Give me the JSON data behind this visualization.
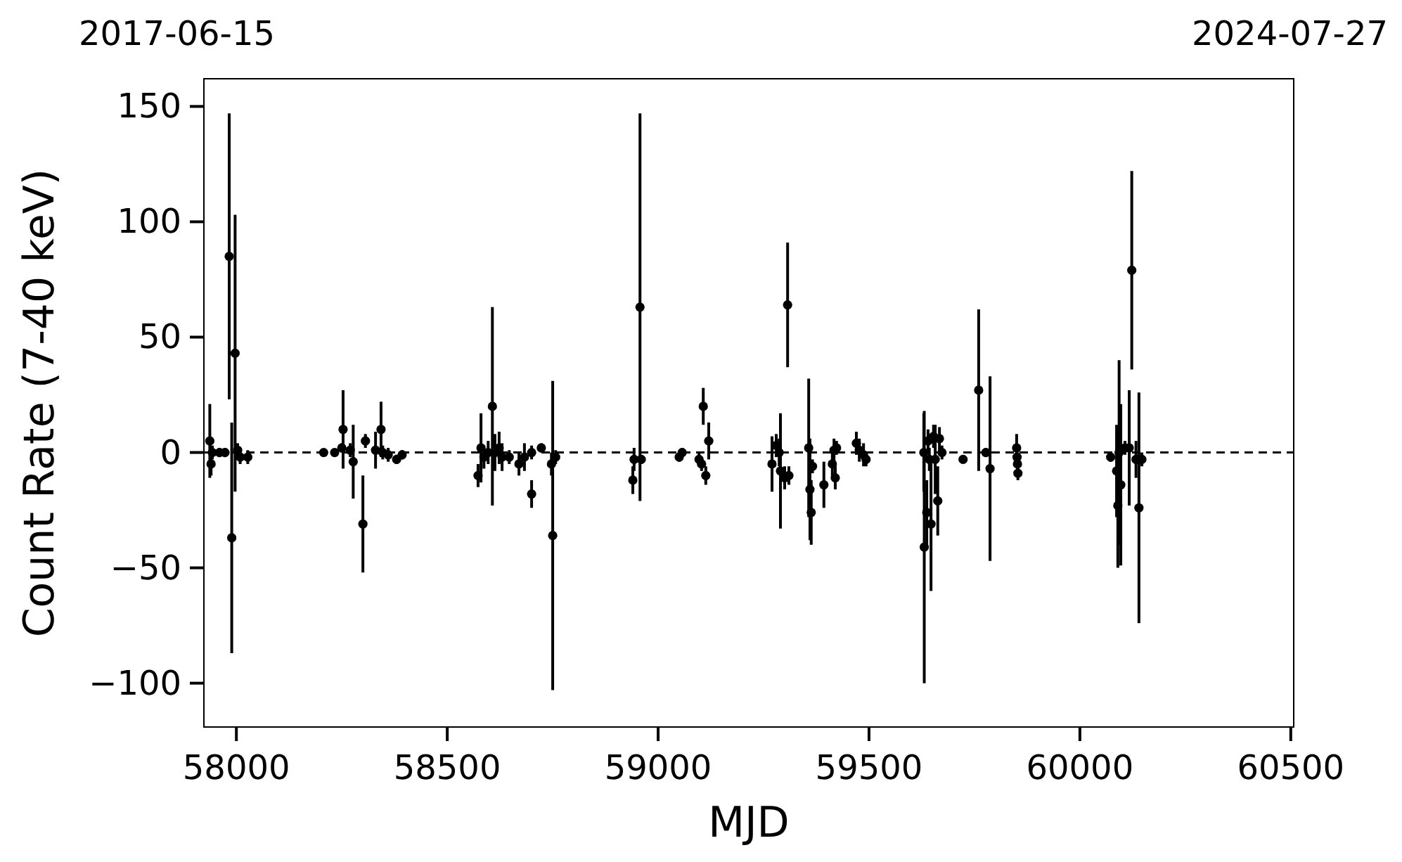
{
  "chart_data": {
    "type": "scatter",
    "xlabel": "MJD",
    "ylabel": "Count Rate (7-40 keV)",
    "annotations": [
      "2017-06-15",
      "2024-07-27"
    ],
    "xlim": [
      57923,
      60507
    ],
    "xticks": [
      58000,
      58500,
      59000,
      59500,
      60000,
      60500
    ],
    "ylim": [
      -119,
      162
    ],
    "yticks": [
      {
        "value": -100,
        "label": "−100"
      },
      {
        "value": -50,
        "label": "−50"
      },
      0,
      50,
      100,
      150
    ],
    "marker": "circle",
    "ref_lines": [
      {
        "axis": "y",
        "value": 0,
        "color": "#000000",
        "line_style": "dashed"
      }
    ],
    "series": [
      {
        "color": "#000000",
        "x": [
          57937,
          57940,
          57943,
          57960,
          57973,
          57983,
          57989,
          57997,
          58003,
          58009,
          58027,
          58207,
          58233,
          58250,
          58253,
          58270,
          58277,
          58300,
          58306,
          58330,
          58343,
          58347,
          58360,
          58380,
          58393,
          58573,
          58580,
          58587,
          58597,
          58607,
          58613,
          58623,
          58630,
          58647,
          58670,
          58683,
          58700,
          58700,
          58723,
          58747,
          58750,
          58757,
          58940,
          58943,
          58957,
          58960,
          59050,
          59057,
          59107,
          59097,
          59103,
          59113,
          59120,
          59270,
          59280,
          59287,
          59290,
          59300,
          59307,
          59310,
          59357,
          59360,
          59363,
          59366,
          59393,
          59413,
          59417,
          59420,
          59423,
          59470,
          59477,
          59487,
          59493,
          59630,
          59631,
          59637,
          59640,
          59643,
          59647,
          59653,
          59657,
          59663,
          59667,
          59673,
          59723,
          59760,
          59777,
          59787,
          59850,
          59851,
          59852,
          59853,
          60073,
          60087,
          60090,
          60093,
          60097,
          60107,
          60117,
          60123,
          60133,
          60140,
          60147
        ],
        "values": [
          5,
          -5,
          0,
          0,
          0,
          85,
          -37,
          43,
          1,
          -2,
          -2,
          0,
          0,
          2,
          10,
          1,
          -4,
          -31,
          5,
          1,
          10,
          0,
          -1,
          -3,
          -1,
          -10,
          2,
          -2,
          0,
          20,
          0,
          2,
          -2,
          -2,
          -5,
          -2,
          -18,
          0,
          2,
          -5,
          -36,
          -2,
          -12,
          -3,
          63,
          -3,
          -2,
          0,
          20,
          -3,
          -5,
          -10,
          5,
          -5,
          3,
          0,
          -8,
          -11,
          64,
          -10,
          2,
          -16,
          -26,
          -6,
          -14,
          -5,
          1,
          -11,
          2,
          4,
          1,
          -1,
          -3,
          0,
          -41,
          -26,
          5,
          -3,
          -31,
          7,
          -3,
          -21,
          6,
          0,
          -3,
          27,
          0,
          -7,
          2,
          -2,
          -5,
          -9,
          -2,
          -8,
          -23,
          0,
          -14,
          2,
          2,
          79,
          -3,
          -24,
          -3
        ],
        "errors": [
          16,
          5,
          3,
          2,
          2,
          62,
          50,
          60,
          3,
          3,
          3,
          1,
          1,
          2,
          17,
          3,
          16,
          21,
          3,
          8,
          12,
          3,
          3,
          2,
          2,
          5,
          15,
          5,
          5,
          43,
          8,
          7,
          6,
          3,
          5,
          6,
          6,
          3,
          2,
          5,
          67,
          3,
          6,
          5,
          84,
          2,
          2,
          2,
          8,
          3,
          3,
          4,
          8,
          12,
          5,
          6,
          25,
          5,
          27,
          4,
          30,
          22,
          14,
          3,
          10,
          6,
          5,
          5,
          3,
          5,
          5,
          5,
          3,
          17,
          59,
          14,
          5,
          5,
          29,
          5,
          15,
          15,
          5,
          3,
          1,
          35,
          2,
          40,
          6,
          3,
          3,
          3,
          2,
          20,
          27,
          40,
          35,
          3,
          25,
          43,
          8,
          50,
          3
        ]
      }
    ]
  }
}
